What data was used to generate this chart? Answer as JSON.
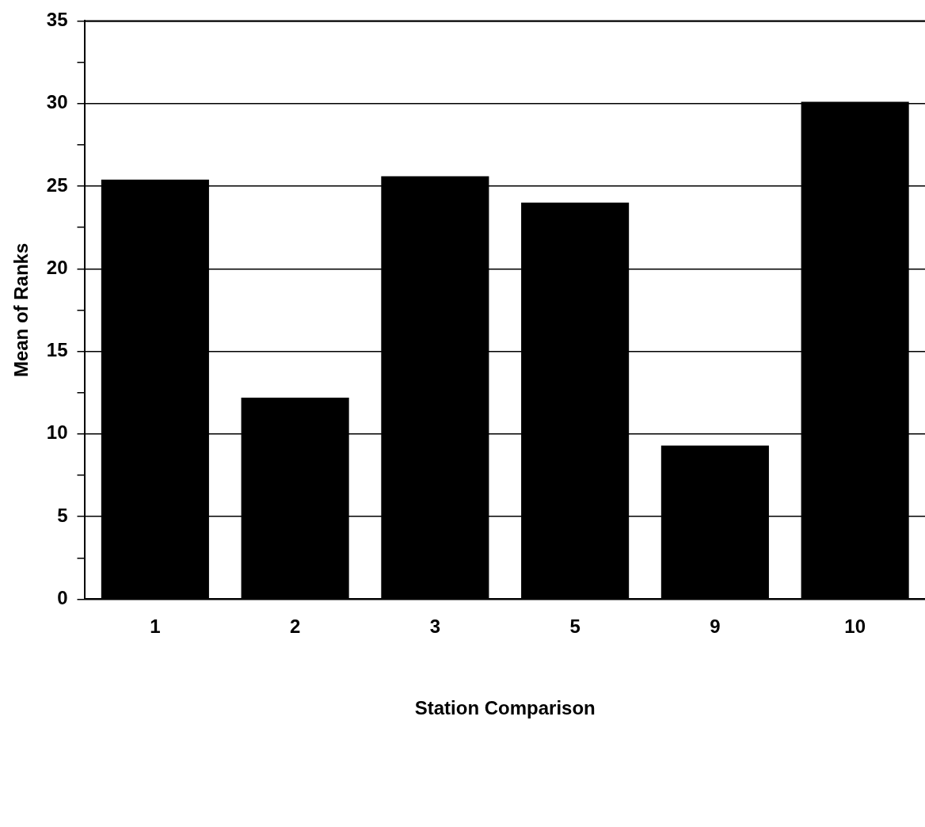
{
  "chart_data": {
    "type": "bar",
    "xlabel": "Station Comparison",
    "ylabel": "Mean of Ranks",
    "categories": [
      "1",
      "2",
      "3",
      "5",
      "9",
      "10"
    ],
    "values": [
      25.4,
      12.2,
      25.6,
      24.0,
      9.3,
      30.1
    ],
    "color": "#000000",
    "ylim": [
      0,
      35
    ],
    "yticks": [
      0,
      {
        "value": 2.5,
        "label": null
      },
      5,
      {
        "value": 7.5,
        "label": null
      },
      10,
      {
        "value": 12.5,
        "label": null
      },
      15,
      {
        "value": 17.5,
        "label": null
      },
      20,
      {
        "value": 22.5,
        "label": null
      },
      25,
      {
        "value": 27.5,
        "label": null
      },
      30,
      {
        "value": 32.5,
        "label": null
      },
      35
    ],
    "grid": "y",
    "legend": false
  }
}
